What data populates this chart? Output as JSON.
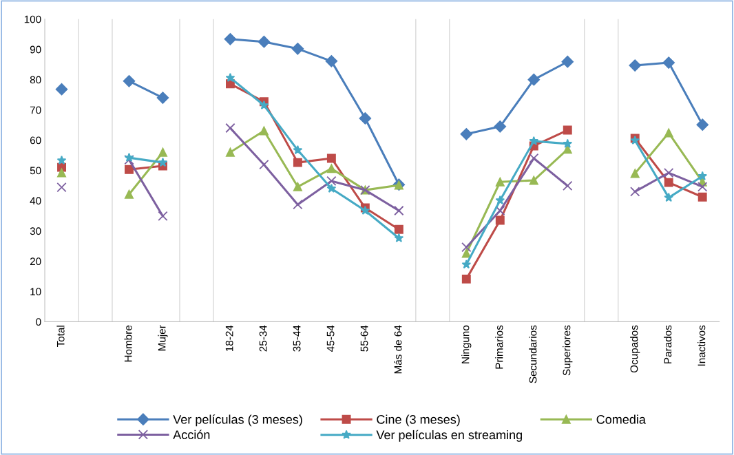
{
  "chart_data": {
    "type": "line",
    "categories": [
      "Total",
      null,
      "Hombre",
      "Mujer",
      null,
      "18-24",
      "25-34",
      "35-44",
      "45-54",
      "55-64",
      "Más de 64",
      null,
      "Ninguno",
      "Primarios",
      "Secundarios",
      "Superiores",
      null,
      "Ocupados",
      "Parados",
      "Inactivos"
    ],
    "ylim": [
      0,
      100
    ],
    "yticks": [
      0,
      10,
      20,
      30,
      40,
      50,
      60,
      70,
      80,
      90,
      100
    ],
    "grid": "x",
    "legend": "bottom",
    "series": [
      {
        "name": "Ver películas (3 meses)",
        "color": "#4a7ebb",
        "marker": "diamond",
        "values": [
          76.8,
          null,
          79.5,
          74,
          null,
          93.4,
          92.5,
          90.2,
          86.1,
          67.2,
          45.3,
          null,
          62,
          64.5,
          80,
          85.9,
          null,
          84.7,
          85.6,
          65.1
        ]
      },
      {
        "name": "Cine (3 meses)",
        "color": "#be4b48",
        "marker": "square",
        "values": [
          51,
          null,
          50.3,
          51.5,
          null,
          78.6,
          72.7,
          52.6,
          54,
          37.6,
          30.5,
          null,
          14.1,
          33.5,
          58.1,
          63.3,
          null,
          60.6,
          46,
          41.2
        ]
      },
      {
        "name": "Comedia",
        "color": "#98b954",
        "marker": "triangle",
        "values": [
          49.2,
          null,
          42.1,
          56,
          null,
          56,
          63.1,
          44.6,
          50.6,
          43.5,
          45.1,
          null,
          22.6,
          46.2,
          46.7,
          57,
          null,
          49,
          62.4,
          46.2
        ]
      },
      {
        "name": "Acción",
        "color": "#7d60a0",
        "marker": "cross",
        "values": [
          44.4,
          null,
          53.5,
          34.9,
          null,
          64,
          51.9,
          38.7,
          46.5,
          43.5,
          36.7,
          null,
          24.6,
          36.7,
          54,
          44.9,
          null,
          43,
          49.2,
          44.6
        ]
      },
      {
        "name": "Ver películas en streaming",
        "color": "#46aac5",
        "marker": "star",
        "values": [
          53.3,
          null,
          54.2,
          52.6,
          null,
          80.6,
          71.5,
          56.7,
          44,
          36.7,
          27.6,
          null,
          18.9,
          40.1,
          59.7,
          58.8,
          null,
          59.9,
          41,
          48.1
        ]
      }
    ]
  }
}
